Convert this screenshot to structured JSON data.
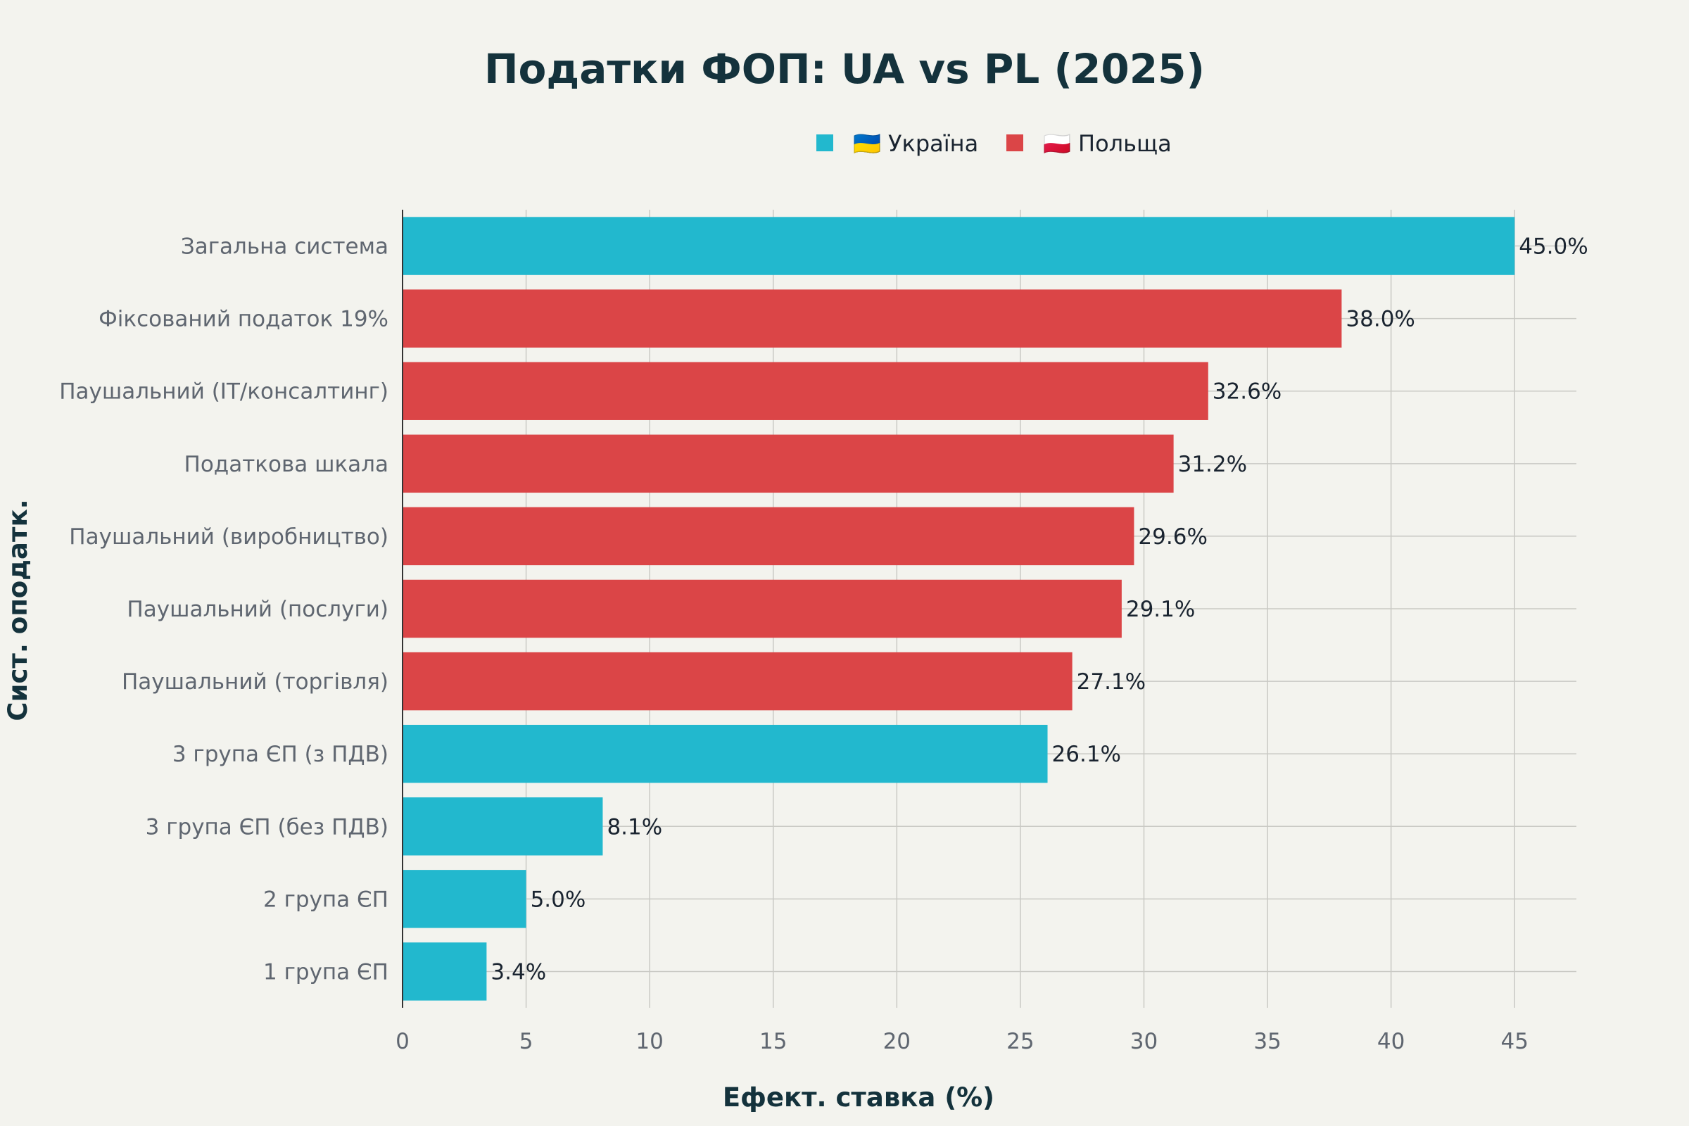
{
  "chart_data": {
    "type": "bar",
    "orientation": "horizontal",
    "title": "Податки ФОП: UA vs PL (2025)",
    "xlabel": "Ефект. ставка (%)",
    "ylabel": "Сист. оподатк.",
    "xlim": [
      0,
      47.5
    ],
    "xticks": [
      0,
      5,
      10,
      15,
      20,
      25,
      30,
      35,
      40,
      45
    ],
    "grid": true,
    "legend_position": "top",
    "legend": [
      {
        "name": "🇺🇦 Україна",
        "color": "#22b8ce"
      },
      {
        "name": "🇵🇱 Польща",
        "color": "#db4547"
      }
    ],
    "bars": [
      {
        "category": "Загальна система",
        "value": 45.0,
        "label": "45.0%",
        "series": 0
      },
      {
        "category": "Фіксований податок 19%",
        "value": 38.0,
        "label": "38.0%",
        "series": 1
      },
      {
        "category": "Паушальний (IT/консалтинг)",
        "value": 32.6,
        "label": "32.6%",
        "series": 1
      },
      {
        "category": "Податкова шкала",
        "value": 31.2,
        "label": "31.2%",
        "series": 1
      },
      {
        "category": "Паушальний (виробництво)",
        "value": 29.6,
        "label": "29.6%",
        "series": 1
      },
      {
        "category": "Паушальний (послуги)",
        "value": 29.1,
        "label": "29.1%",
        "series": 1
      },
      {
        "category": "Паушальний (торгівля)",
        "value": 27.1,
        "label": "27.1%",
        "series": 1
      },
      {
        "category": "3 група ЄП (з ПДВ)",
        "value": 26.1,
        "label": "26.1%",
        "series": 0
      },
      {
        "category": "3 група ЄП (без ПДВ)",
        "value": 8.1,
        "label": "8.1%",
        "series": 0
      },
      {
        "category": "2 група ЄП",
        "value": 5.0,
        "label": "5.0%",
        "series": 0
      },
      {
        "category": "1 група ЄП",
        "value": 3.4,
        "label": "3.4%",
        "series": 0
      }
    ]
  }
}
